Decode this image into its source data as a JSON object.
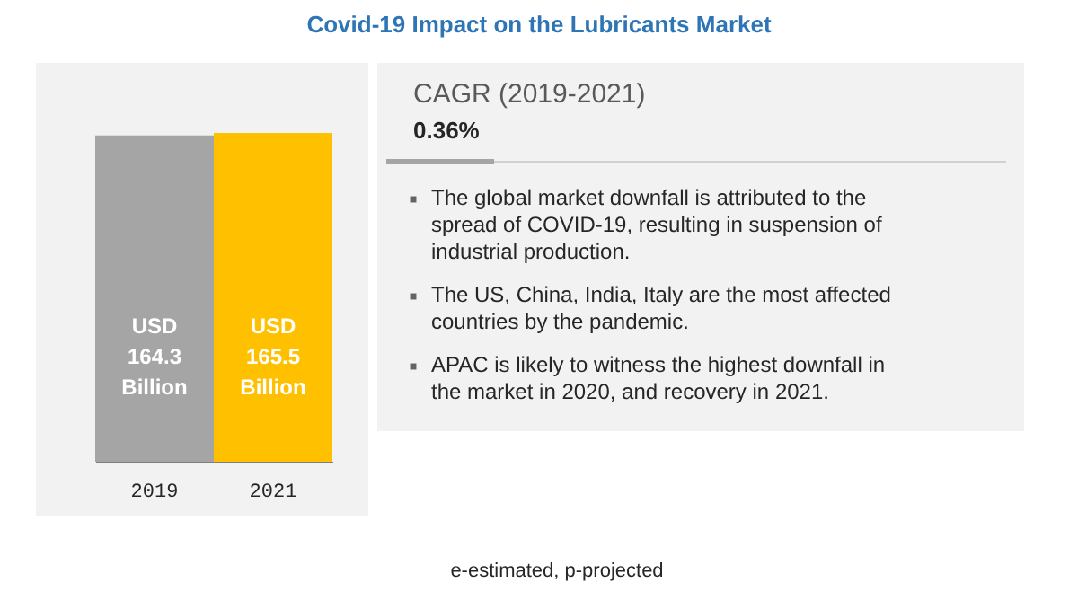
{
  "chart_data": {
    "type": "bar",
    "title": "Covid-19 Impact on the Lubricants Market",
    "categories": [
      "2019",
      "2021"
    ],
    "values": [
      164.3,
      165.5
    ],
    "colors": [
      "#a5a5a5",
      "#ffc000"
    ],
    "value_labels": [
      "USD 164.3 Billion",
      "USD 165.5 Billion"
    ],
    "tick_labels": "x",
    "annotations": [
      "CAGR (2019-2021)",
      "0.36%",
      "The global market downfall is attributed to the spread of COVID-19, resulting in suspension of industrial production.",
      "The US, China, India, Italy are the most affected countries by the pandemic.",
      "APAC is likely to witness the highest downfall in the market in 2020, and recovery in 2021.",
      "e-estimated, p-projected"
    ]
  }
}
